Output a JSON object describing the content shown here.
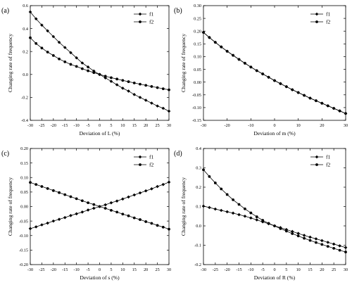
{
  "chart_data": [
    {
      "panel": "(a)",
      "type": "line",
      "xlabel": "Deviation of L (%)",
      "ylabel": "Changing rate of frequency",
      "xlim": [
        -30,
        30
      ],
      "ylim": [
        -0.4,
        0.6
      ],
      "xticks": [
        -30,
        -25,
        -20,
        -15,
        -10,
        -5,
        0,
        5,
        10,
        15,
        20,
        25,
        30
      ],
      "yticks": [
        "-0.4",
        "-0.2",
        "0.0",
        "0.2",
        "0.4",
        "0.6"
      ],
      "grid": false,
      "legend": "top-right",
      "series": [
        {
          "name": "f1",
          "marker": "diamond",
          "x": [
            -30,
            -27.5,
            -25,
            -22.5,
            -20,
            -17.5,
            -15,
            -12.5,
            -10,
            -7.5,
            -5,
            -2.5,
            0,
            2.5,
            5,
            7.5,
            10,
            12.5,
            15,
            17.5,
            20,
            22.5,
            25,
            27.5,
            30
          ],
          "y": [
            0.545,
            0.485,
            0.43,
            0.38,
            0.33,
            0.28,
            0.235,
            0.19,
            0.145,
            0.1,
            0.065,
            0.03,
            0,
            -0.03,
            -0.06,
            -0.09,
            -0.12,
            -0.145,
            -0.175,
            -0.2,
            -0.225,
            -0.25,
            -0.275,
            -0.295,
            -0.32
          ]
        },
        {
          "name": "f2",
          "marker": "circle",
          "x": [
            -30,
            -27.5,
            -25,
            -22.5,
            -20,
            -17.5,
            -15,
            -12.5,
            -10,
            -7.5,
            -5,
            -2.5,
            0,
            2.5,
            5,
            7.5,
            10,
            12.5,
            15,
            17.5,
            20,
            22.5,
            25,
            27.5,
            30
          ],
          "y": [
            0.32,
            0.27,
            0.23,
            0.195,
            0.165,
            0.135,
            0.11,
            0.088,
            0.07,
            0.05,
            0.032,
            0.016,
            0,
            -0.015,
            -0.028,
            -0.04,
            -0.052,
            -0.063,
            -0.074,
            -0.085,
            -0.095,
            -0.105,
            -0.115,
            -0.125,
            -0.134
          ]
        }
      ]
    },
    {
      "panel": "(b)",
      "type": "line",
      "xlabel": "Deviation of m (%)",
      "ylabel": "Changing rate of frequency",
      "xlim": [
        -30,
        30
      ],
      "ylim": [
        -0.15,
        0.3
      ],
      "xticks": [
        -30,
        -20,
        -10,
        0,
        10,
        20,
        30
      ],
      "yticks": [
        "-0.15",
        "-0.10",
        "-0.05",
        "0.00",
        "0.05",
        "0.10",
        "0.15",
        "0.20",
        "0.25",
        "0.30"
      ],
      "grid": false,
      "legend": "top-right",
      "series": [
        {
          "name": "f1",
          "marker": "diamond",
          "x": [
            -30,
            -27.5,
            -25,
            -22.5,
            -20,
            -17.5,
            -15,
            -12.5,
            -10,
            -7.5,
            -5,
            -2.5,
            0,
            2.5,
            5,
            7.5,
            10,
            12.5,
            15,
            17.5,
            20,
            22.5,
            25,
            27.5,
            30
          ],
          "y": [
            0.195,
            0.175,
            0.156,
            0.138,
            0.121,
            0.105,
            0.089,
            0.074,
            0.059,
            0.045,
            0.032,
            0.019,
            0.006,
            -0.006,
            -0.018,
            -0.03,
            -0.041,
            -0.052,
            -0.063,
            -0.073,
            -0.083,
            -0.093,
            -0.103,
            -0.113,
            -0.123
          ]
        },
        {
          "name": "f2",
          "marker": "circle",
          "x": [
            -30,
            -27.5,
            -25,
            -22.5,
            -20,
            -17.5,
            -15,
            -12.5,
            -10,
            -7.5,
            -5,
            -2.5,
            0,
            2.5,
            5,
            7.5,
            10,
            12.5,
            15,
            17.5,
            20,
            22.5,
            25,
            27.5,
            30
          ],
          "y": [
            0.195,
            0.175,
            0.156,
            0.138,
            0.121,
            0.105,
            0.089,
            0.074,
            0.059,
            0.045,
            0.032,
            0.019,
            0.006,
            -0.006,
            -0.018,
            -0.03,
            -0.041,
            -0.052,
            -0.063,
            -0.073,
            -0.083,
            -0.093,
            -0.103,
            -0.113,
            -0.123
          ]
        }
      ]
    },
    {
      "panel": "(c)",
      "type": "line",
      "xlabel": "Deviation of s (%)",
      "ylabel": "Changing rate of frequency",
      "xlim": [
        -30,
        30
      ],
      "ylim": [
        -0.2,
        0.2
      ],
      "xticks": [
        -30,
        -25,
        -20,
        -15,
        -10,
        -5,
        0,
        5,
        10,
        15,
        20,
        25,
        30
      ],
      "yticks": [
        "-0.20",
        "-0.15",
        "-0.10",
        "-0.05",
        "0.00",
        "0.05",
        "0.10",
        "0.15",
        "0.20"
      ],
      "grid": false,
      "legend": "top-right",
      "series": [
        {
          "name": "f1",
          "marker": "diamond",
          "x": [
            -30,
            -27.5,
            -25,
            -22.5,
            -20,
            -17.5,
            -15,
            -12.5,
            -10,
            -7.5,
            -5,
            -2.5,
            0,
            2.5,
            5,
            7.5,
            10,
            12.5,
            15,
            17.5,
            20,
            22.5,
            25,
            27.5,
            30
          ],
          "y": [
            -0.076,
            -0.07,
            -0.063,
            -0.057,
            -0.05,
            -0.044,
            -0.038,
            -0.031,
            -0.025,
            -0.019,
            -0.012,
            -0.006,
            0,
            0.006,
            0.013,
            0.019,
            0.026,
            0.033,
            0.04,
            0.047,
            0.054,
            0.061,
            0.069,
            0.076,
            0.084
          ]
        },
        {
          "name": "f2",
          "marker": "circle",
          "x": [
            -30,
            -27.5,
            -25,
            -22.5,
            -20,
            -17.5,
            -15,
            -12.5,
            -10,
            -7.5,
            -5,
            -2.5,
            0,
            2.5,
            5,
            7.5,
            10,
            12.5,
            15,
            17.5,
            20,
            22.5,
            25,
            27.5,
            30
          ],
          "y": [
            0.083,
            0.076,
            0.069,
            0.062,
            0.055,
            0.048,
            0.041,
            0.034,
            0.027,
            0.02,
            0.013,
            0.007,
            0,
            -0.006,
            -0.013,
            -0.019,
            -0.026,
            -0.032,
            -0.039,
            -0.045,
            -0.052,
            -0.058,
            -0.065,
            -0.071,
            -0.078
          ]
        }
      ]
    },
    {
      "panel": "(d)",
      "type": "line",
      "xlabel": "Deviation of R (%)",
      "ylabel": "Changing rate of frequency",
      "xlim": [
        -30,
        30
      ],
      "ylim": [
        -0.2,
        0.4
      ],
      "xticks": [
        -30,
        -25,
        -20,
        -15,
        -10,
        -5,
        0,
        5,
        10,
        15,
        20,
        25,
        30
      ],
      "yticks": [
        "-0.2",
        "-0.1",
        "0.0",
        "0.1",
        "0.2",
        "0.3",
        "0.4"
      ],
      "grid": false,
      "legend": "top-right",
      "series": [
        {
          "name": "f1",
          "marker": "diamond",
          "x": [
            -30,
            -27.5,
            -25,
            -22.5,
            -20,
            -17.5,
            -15,
            -12.5,
            -10,
            -7.5,
            -5,
            -2.5,
            0,
            2.5,
            5,
            7.5,
            10,
            12.5,
            15,
            17.5,
            20,
            22.5,
            25,
            27.5,
            30
          ],
          "y": [
            0.102,
            0.095,
            0.087,
            0.08,
            0.073,
            0.066,
            0.058,
            0.05,
            0.041,
            0.031,
            0.021,
            0.011,
            0,
            -0.009,
            -0.019,
            -0.029,
            -0.039,
            -0.049,
            -0.058,
            -0.067,
            -0.076,
            -0.085,
            -0.094,
            -0.103,
            -0.112
          ]
        },
        {
          "name": "f2",
          "marker": "circle",
          "x": [
            -30,
            -27.5,
            -25,
            -22.5,
            -20,
            -17.5,
            -15,
            -12.5,
            -10,
            -7.5,
            -5,
            -2.5,
            0,
            2.5,
            5,
            7.5,
            10,
            12.5,
            15,
            17.5,
            20,
            22.5,
            25,
            27.5,
            30
          ],
          "y": [
            0.29,
            0.255,
            0.222,
            0.191,
            0.162,
            0.135,
            0.111,
            0.088,
            0.067,
            0.047,
            0.029,
            0.013,
            0,
            -0.014,
            -0.027,
            -0.04,
            -0.052,
            -0.064,
            -0.075,
            -0.086,
            -0.096,
            -0.106,
            -0.116,
            -0.126,
            -0.135
          ]
        }
      ]
    }
  ]
}
